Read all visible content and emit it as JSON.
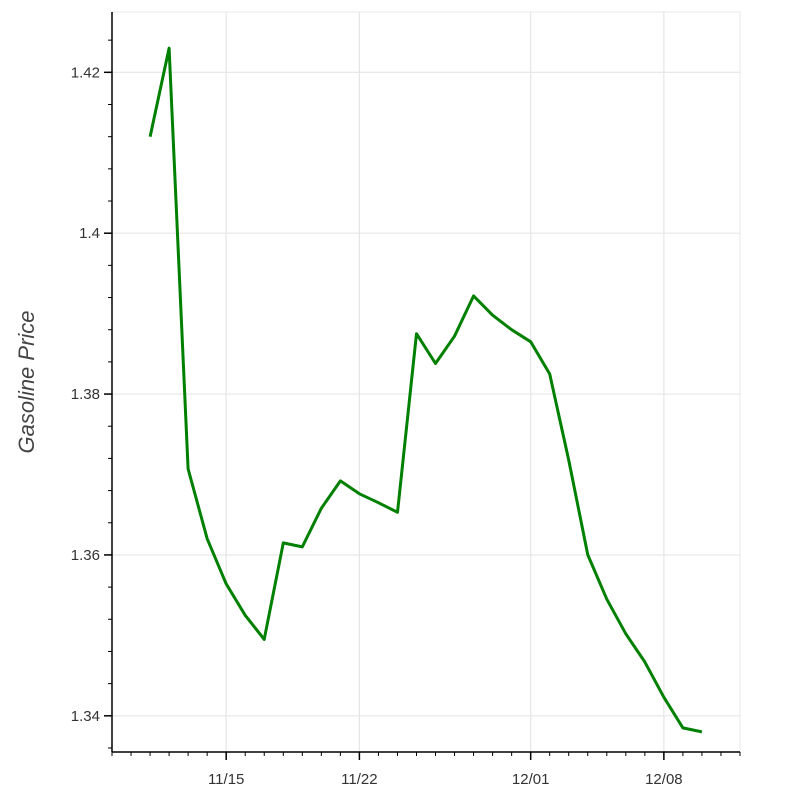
{
  "chart_data": {
    "type": "line",
    "title": "",
    "xlabel": "",
    "ylabel": "Gasoline Price",
    "x_ticks": [
      "11/15",
      "11/22",
      "12/01",
      "12/08"
    ],
    "y_ticks": [
      "1.34",
      "1.36",
      "1.38",
      "1.4",
      "1.42"
    ],
    "xlim": [
      "2016-11-09",
      "2016-12-12"
    ],
    "ylim": [
      1.3355,
      1.4275
    ],
    "grid": true,
    "legend": "none",
    "series": [
      {
        "color": "#008000",
        "x": [
          "2016-11-11",
          "2016-11-12",
          "2016-11-13",
          "2016-11-14",
          "2016-11-15",
          "2016-11-16",
          "2016-11-17",
          "2016-11-18",
          "2016-11-19",
          "2016-11-20",
          "2016-11-21",
          "2016-11-22",
          "2016-11-23",
          "2016-11-24",
          "2016-11-25",
          "2016-11-26",
          "2016-11-27",
          "2016-11-28",
          "2016-11-29",
          "2016-11-30",
          "2016-12-01",
          "2016-12-02",
          "2016-12-03",
          "2016-12-04",
          "2016-12-05",
          "2016-12-06",
          "2016-12-07",
          "2016-12-08",
          "2016-12-09",
          "2016-12-10"
        ],
        "values": [
          1.412,
          1.423,
          1.3707,
          1.362,
          1.3564,
          1.3525,
          1.3495,
          1.3615,
          1.361,
          1.3658,
          1.3692,
          1.3676,
          1.3665,
          1.3653,
          1.3875,
          1.3838,
          1.3872,
          1.3922,
          1.3898,
          1.388,
          1.3865,
          1.3825,
          1.3718,
          1.36,
          1.3545,
          1.3502,
          1.3467,
          1.3423,
          1.3385,
          1.338
        ]
      }
    ]
  }
}
